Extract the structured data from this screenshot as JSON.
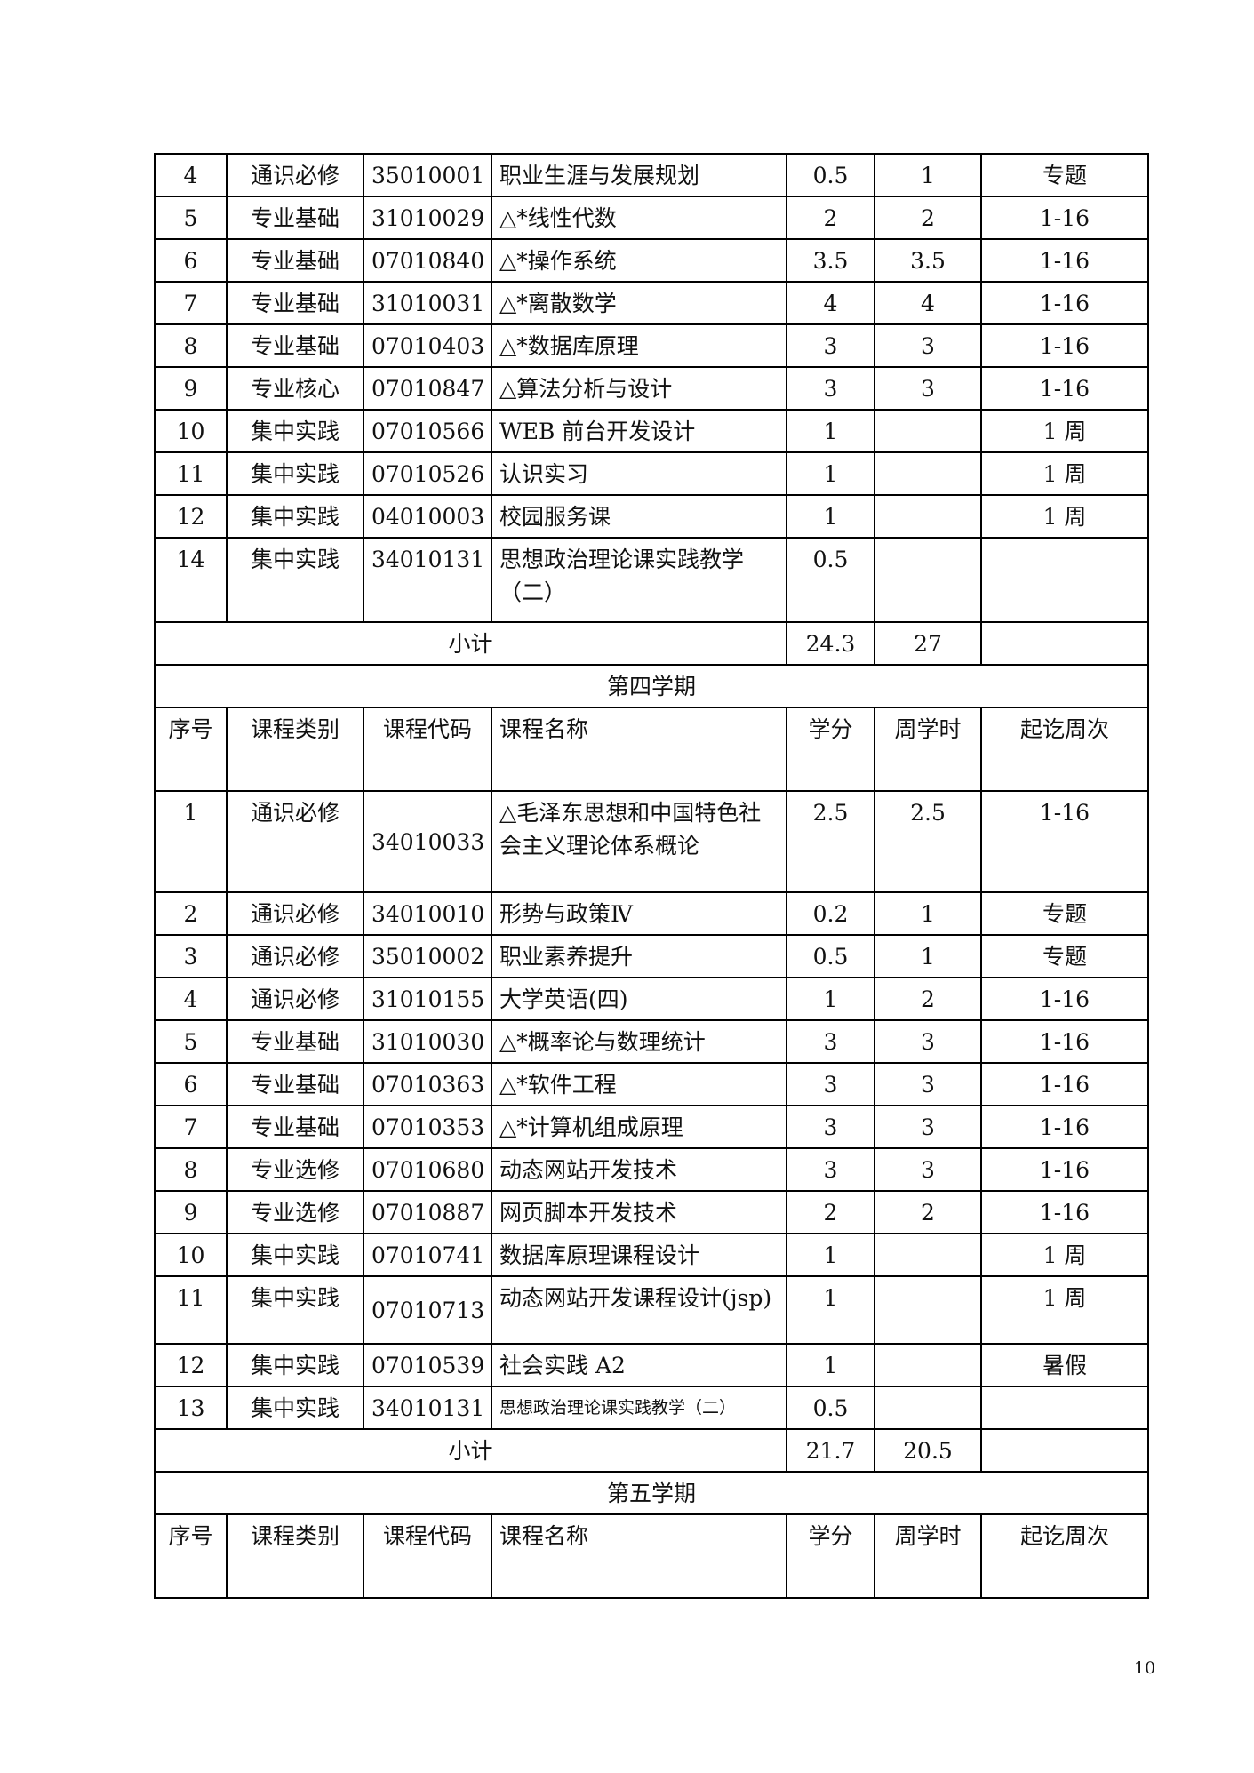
{
  "rows": [
    {
      "type": "course",
      "cells": [
        "4",
        "通识必修",
        "35010001",
        "职业生涯与发展规划",
        "0.5",
        "1",
        "专题"
      ]
    },
    {
      "type": "course",
      "cells": [
        "5",
        "专业基础",
        "31010029",
        "△*线性代数",
        "2",
        "2",
        "1-16"
      ]
    },
    {
      "type": "course",
      "cells": [
        "6",
        "专业基础",
        "07010840",
        "△*操作系统",
        "3.5",
        "3.5",
        "1-16"
      ]
    },
    {
      "type": "course",
      "cells": [
        "7",
        "专业基础",
        "31010031",
        "△*离散数学",
        "4",
        "4",
        "1-16"
      ]
    },
    {
      "type": "course",
      "cells": [
        "8",
        "专业基础",
        "07010403",
        "△*数据库原理",
        "3",
        "3",
        "1-16"
      ]
    },
    {
      "type": "course",
      "cells": [
        "9",
        "专业核心",
        "07010847",
        "△算法分析与设计",
        "3",
        "3",
        "1-16"
      ]
    },
    {
      "type": "course",
      "cells": [
        "10",
        "集中实践",
        "07010566",
        "WEB 前台开发设计",
        "1",
        "",
        "1 周"
      ]
    },
    {
      "type": "course",
      "cells": [
        "11",
        "集中实践",
        "07010526",
        "认识实习",
        "1",
        "",
        "1 周"
      ]
    },
    {
      "type": "course",
      "cells": [
        "12",
        "集中实践",
        "04010003",
        "校园服务课",
        "1",
        "",
        "1 周"
      ]
    },
    {
      "type": "course",
      "tall": "95",
      "cells": [
        "14",
        "集中实践",
        "34010131",
        "思想政治理论课实践教学（二）",
        "0.5",
        "",
        ""
      ]
    },
    {
      "type": "subtotal",
      "cells": [
        "小计",
        "24.3",
        "27",
        ""
      ]
    },
    {
      "type": "semester",
      "cells": [
        "第四学期"
      ]
    },
    {
      "type": "header",
      "tall": "94",
      "cells": [
        "序号",
        "课程类别",
        "课程代码",
        "课程名称",
        "学分",
        "周学时",
        "起讫周次"
      ]
    },
    {
      "type": "course",
      "tall": "114",
      "cells": [
        "1",
        "通识必修",
        "34010033",
        "△毛泽东思想和中国特色社会主义理论体系概论",
        "2.5",
        "2.5",
        "1-16"
      ]
    },
    {
      "type": "course",
      "cells": [
        "2",
        "通识必修",
        "34010010",
        "形势与政策Ⅳ",
        "0.2",
        "1",
        "专题"
      ]
    },
    {
      "type": "course",
      "cells": [
        "3",
        "通识必修",
        "35010002",
        "职业素养提升",
        "0.5",
        "1",
        "专题"
      ]
    },
    {
      "type": "course",
      "cells": [
        "4",
        "通识必修",
        "31010155",
        "大学英语(四)",
        "1",
        "2",
        "1-16"
      ]
    },
    {
      "type": "course",
      "cells": [
        "5",
        "专业基础",
        "31010030",
        "△*概率论与数理统计",
        "3",
        "3",
        "1-16"
      ]
    },
    {
      "type": "course",
      "cells": [
        "6",
        "专业基础",
        "07010363",
        "△*软件工程",
        "3",
        "3",
        "1-16"
      ]
    },
    {
      "type": "course",
      "cells": [
        "7",
        "专业基础",
        "07010353",
        "△*计算机组成原理",
        "3",
        "3",
        "1-16"
      ]
    },
    {
      "type": "course",
      "cells": [
        "8",
        "专业选修",
        "07010680",
        "动态网站开发技术",
        "3",
        "3",
        "1-16"
      ]
    },
    {
      "type": "course",
      "cells": [
        "9",
        "专业选修",
        "07010887",
        "网页脚本开发技术",
        "2",
        "2",
        "1-16"
      ]
    },
    {
      "type": "course",
      "cells": [
        "10",
        "集中实践",
        "07010741",
        "数据库原理课程设计",
        "1",
        "",
        "1 周"
      ]
    },
    {
      "type": "course",
      "tall": "76",
      "cells": [
        "11",
        "集中实践",
        "07010713",
        "动态网站开发课程设计(jsp)",
        "1",
        "",
        "1 周"
      ]
    },
    {
      "type": "course",
      "cells": [
        "12",
        "集中实践",
        "07010539",
        "社会实践 A2",
        "1",
        "",
        "暑假"
      ]
    },
    {
      "type": "course",
      "small": true,
      "cells": [
        "13",
        "集中实践",
        "34010131",
        "思想政治理论课实践教学（二）",
        "0.5",
        "",
        ""
      ]
    },
    {
      "type": "subtotal",
      "cells": [
        "小计",
        "21.7",
        "20.5",
        ""
      ]
    },
    {
      "type": "semester",
      "cells": [
        "第五学期"
      ]
    },
    {
      "type": "header",
      "tall": "94",
      "cells": [
        "序号",
        "课程类别",
        "课程代码",
        "课程名称",
        "学分",
        "周学时",
        "起讫周次"
      ]
    }
  ],
  "page_number": "10"
}
